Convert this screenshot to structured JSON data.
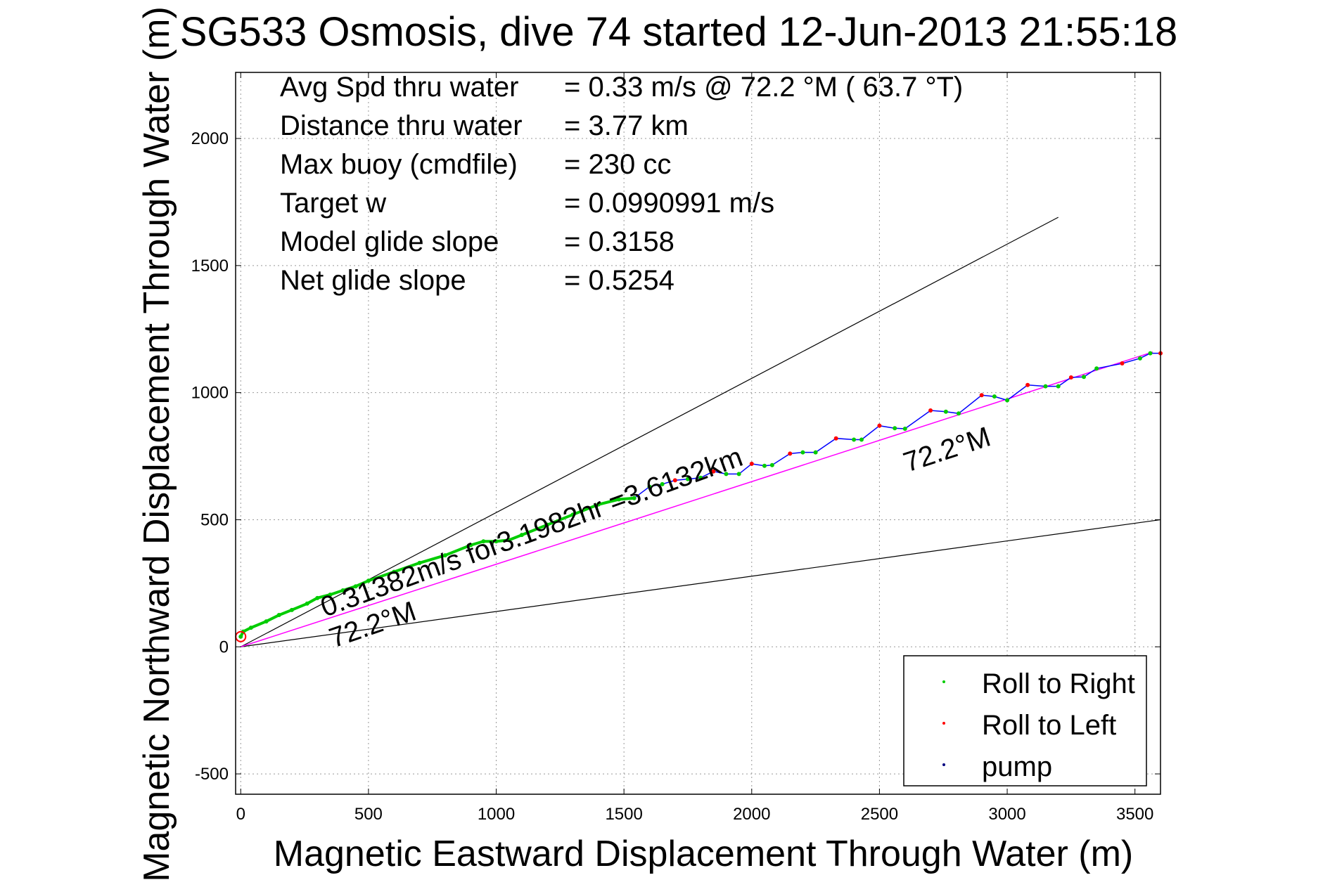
{
  "chart_data": {
    "type": "scatter",
    "title": "SG533 Osmosis, dive 74 started 12-Jun-2013 21:55:18",
    "xlabel": "Magnetic Eastward Displacement Through Water (m)",
    "ylabel": "Magnetic Northward Displacement Through Water (m)",
    "xlim": [
      -20,
      3600
    ],
    "ylim": [
      -580,
      2260
    ],
    "xticks": [
      0,
      500,
      1000,
      1500,
      2000,
      2500,
      3000,
      3500
    ],
    "yticks": [
      -500,
      0,
      500,
      1000,
      1500,
      2000
    ],
    "xtick_labels": [
      "0",
      "500",
      "1000",
      "1500",
      "2000",
      "2500",
      "3000",
      "3500"
    ],
    "ytick_labels": [
      "-500",
      "0",
      "500",
      "1000",
      "1500",
      "2000"
    ],
    "grid": true,
    "info_lines": [
      {
        "label": "Avg Spd thru water",
        "value": "=  0.33 m/s @  72.2 °M ( 63.7 °T)"
      },
      {
        "label": "Distance thru water",
        "value": "=  3.77 km"
      },
      {
        "label": "Max buoy (cmdfile)",
        "value": "= 230 cc"
      },
      {
        "label": "Target w",
        "value": "= 0.0990991 m/s"
      },
      {
        "label": "Model glide slope",
        "value": "= 0.3158"
      },
      {
        "label": "Net glide slope",
        "value": "= 0.5254"
      }
    ],
    "annotations": {
      "current_text": "0.31382m/s for3.1982hr =3.6132km",
      "heading_start": "72.2°M",
      "heading_end": "72.2°M"
    },
    "cone_lines": [
      {
        "name": "upper",
        "from": [
          0,
          0
        ],
        "to": [
          3200,
          1690
        ]
      },
      {
        "name": "lower",
        "from": [
          0,
          0
        ],
        "to": [
          3600,
          500
        ]
      }
    ],
    "heading_line": {
      "from": [
        0,
        0
      ],
      "to": [
        3570,
        1160
      ]
    },
    "track": [
      [
        0,
        40
      ],
      [
        10,
        60
      ],
      [
        40,
        75
      ],
      [
        100,
        100
      ],
      [
        150,
        125
      ],
      [
        200,
        145
      ],
      [
        260,
        170
      ],
      [
        300,
        192
      ],
      [
        350,
        205
      ],
      [
        400,
        222
      ],
      [
        450,
        238
      ],
      [
        500,
        260
      ],
      [
        600,
        295
      ],
      [
        700,
        330
      ],
      [
        800,
        360
      ],
      [
        900,
        400
      ],
      [
        950,
        415
      ],
      [
        1000,
        415
      ],
      [
        1050,
        420
      ],
      [
        1100,
        440
      ],
      [
        1200,
        480
      ],
      [
        1300,
        520
      ],
      [
        1400,
        560
      ],
      [
        1480,
        580
      ],
      [
        1540,
        585
      ],
      [
        1600,
        630
      ],
      [
        1650,
        640
      ],
      [
        1700,
        655
      ],
      [
        1750,
        660
      ],
      [
        1800,
        665
      ],
      [
        1850,
        690
      ],
      [
        1900,
        680
      ],
      [
        1950,
        680
      ],
      [
        2000,
        720
      ],
      [
        2050,
        712
      ],
      [
        2080,
        715
      ],
      [
        2150,
        760
      ],
      [
        2200,
        765
      ],
      [
        2250,
        765
      ],
      [
        2330,
        820
      ],
      [
        2400,
        815
      ],
      [
        2430,
        815
      ],
      [
        2500,
        870
      ],
      [
        2560,
        860
      ],
      [
        2600,
        858
      ],
      [
        2700,
        930
      ],
      [
        2760,
        925
      ],
      [
        2810,
        918
      ],
      [
        2900,
        990
      ],
      [
        2950,
        985
      ],
      [
        3000,
        970
      ],
      [
        3080,
        1030
      ],
      [
        3150,
        1025
      ],
      [
        3200,
        1025
      ],
      [
        3250,
        1060
      ],
      [
        3300,
        1062
      ],
      [
        3350,
        1095
      ],
      [
        3450,
        1115
      ],
      [
        3520,
        1135
      ],
      [
        3560,
        1155
      ],
      [
        3600,
        1155
      ]
    ],
    "series": [
      {
        "name": "Roll to Right",
        "color": "#00cc00"
      },
      {
        "name": "Roll to Left",
        "color": "#ff0000"
      },
      {
        "name": "pump",
        "color": "#000080"
      }
    ],
    "legend_placement": "bottom-right",
    "colors": {
      "track": "#0000ff",
      "heading_line": "#ff00ff",
      "cone": "#000000"
    }
  }
}
